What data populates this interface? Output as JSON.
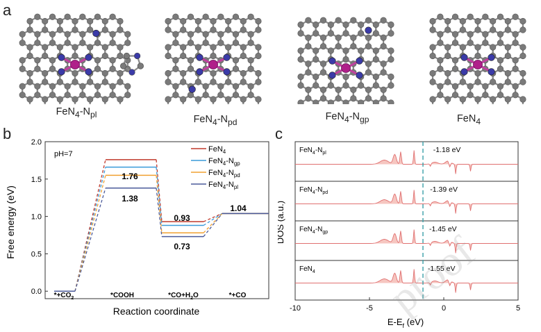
{
  "panel_a": {
    "letter": "a",
    "structures": [
      {
        "label_base": "FeN",
        "label_sub1": "4",
        "label_mid": "-N",
        "label_sub2": "pl",
        "side_ring": true
      },
      {
        "label_base": "FeN",
        "label_sub1": "4",
        "label_mid": "-N",
        "label_sub2": "pd",
        "side_ring": false
      },
      {
        "label_base": "FeN",
        "label_sub1": "4",
        "label_mid": "-N",
        "label_sub2": "gp",
        "side_ring": false
      },
      {
        "label_base": "FeN",
        "label_sub1": "4",
        "label_mid": "",
        "label_sub2": "",
        "side_ring": false
      }
    ],
    "atom_colors": {
      "carbon": "#7a7a7a",
      "nitrogen": "#3b3ba8",
      "iron": "#b0208a",
      "bond": "#8a8a8a",
      "fe_bond": "#c040a0"
    }
  },
  "panel_b": {
    "letter": "b",
    "annotation": "pH=7",
    "ylabel": "Free energy (eV)",
    "xlabel": "Reaction coordinate",
    "yticks": [
      "0.0",
      "0.5",
      "1.0",
      "1.5",
      "2.0"
    ],
    "legend": [
      {
        "base": "FeN",
        "sub1": "4",
        "mid": "",
        "sub2": "",
        "color": "#c0392b"
      },
      {
        "base": "FeN",
        "sub1": "4",
        "mid": "-N",
        "sub2": "gp",
        "color": "#3a9ad9"
      },
      {
        "base": "FeN",
        "sub1": "4",
        "mid": "-N",
        "sub2": "pd",
        "color": "#f0a030"
      },
      {
        "base": "FeN",
        "sub1": "4",
        "mid": "-N",
        "sub2": "pl",
        "color": "#4a5a9a"
      }
    ],
    "value_labels": {
      "cooh_top": "1.76",
      "cooh_bottom": "1.38",
      "co_top": "0.93",
      "co_bottom": "0.73",
      "final": "1.04"
    },
    "step_labels": [
      {
        "pre": "*+CO",
        "sub": "2",
        "post": ""
      },
      {
        "pre": "*COOH",
        "sub": "",
        "post": ""
      },
      {
        "pre": "*CO+H",
        "sub": "2",
        "post": "O"
      },
      {
        "pre": "*+CO",
        "sub": "",
        "post": ""
      }
    ]
  },
  "chart_data": {
    "type": "line",
    "title": "",
    "xlabel": "Reaction coordinate",
    "ylabel": "Free energy (eV)",
    "ylim": [
      -0.1,
      2.0
    ],
    "categories": [
      "*+CO2",
      "*COOH",
      "*CO+H2O",
      "*+CO"
    ],
    "series": [
      {
        "name": "FeN4",
        "values": [
          0,
          1.76,
          0.93,
          1.04
        ]
      },
      {
        "name": "FeN4-Ngp",
        "values": [
          0,
          1.66,
          0.88,
          1.04
        ]
      },
      {
        "name": "FeN4-Npd",
        "values": [
          0,
          1.55,
          0.78,
          1.04
        ]
      },
      {
        "name": "FeN4-Npl",
        "values": [
          0,
          1.38,
          0.73,
          1.04
        ]
      }
    ]
  },
  "panel_c": {
    "letter": "c",
    "ylabel": "DOS (a.u.)",
    "xlabel_base": "E-E",
    "xlabel_sub": "f",
    "xlabel_unit": " (eV)",
    "xticks": [
      "-10",
      "-5",
      "0",
      "5"
    ],
    "dashed_color": "#3aa0a8",
    "curve_color": "#e07070",
    "fill_color": "#f4b8b0",
    "rows": [
      {
        "base": "FeN",
        "sub1": "4",
        "mid": "-N",
        "sub2": "pl",
        "energy": "-1.18 eV",
        "center": -1.18
      },
      {
        "base": "FeN",
        "sub1": "4",
        "mid": "-N",
        "sub2": "pd",
        "energy": "-1.39 eV",
        "center": -1.39
      },
      {
        "base": "FeN",
        "sub1": "4",
        "mid": "-N",
        "sub2": "gp",
        "energy": "-1.45 eV",
        "center": -1.45
      },
      {
        "base": "FeN",
        "sub1": "4",
        "mid": "",
        "sub2": "",
        "energy": "-1.55 eV",
        "center": -1.55
      }
    ]
  },
  "watermark": "proof"
}
